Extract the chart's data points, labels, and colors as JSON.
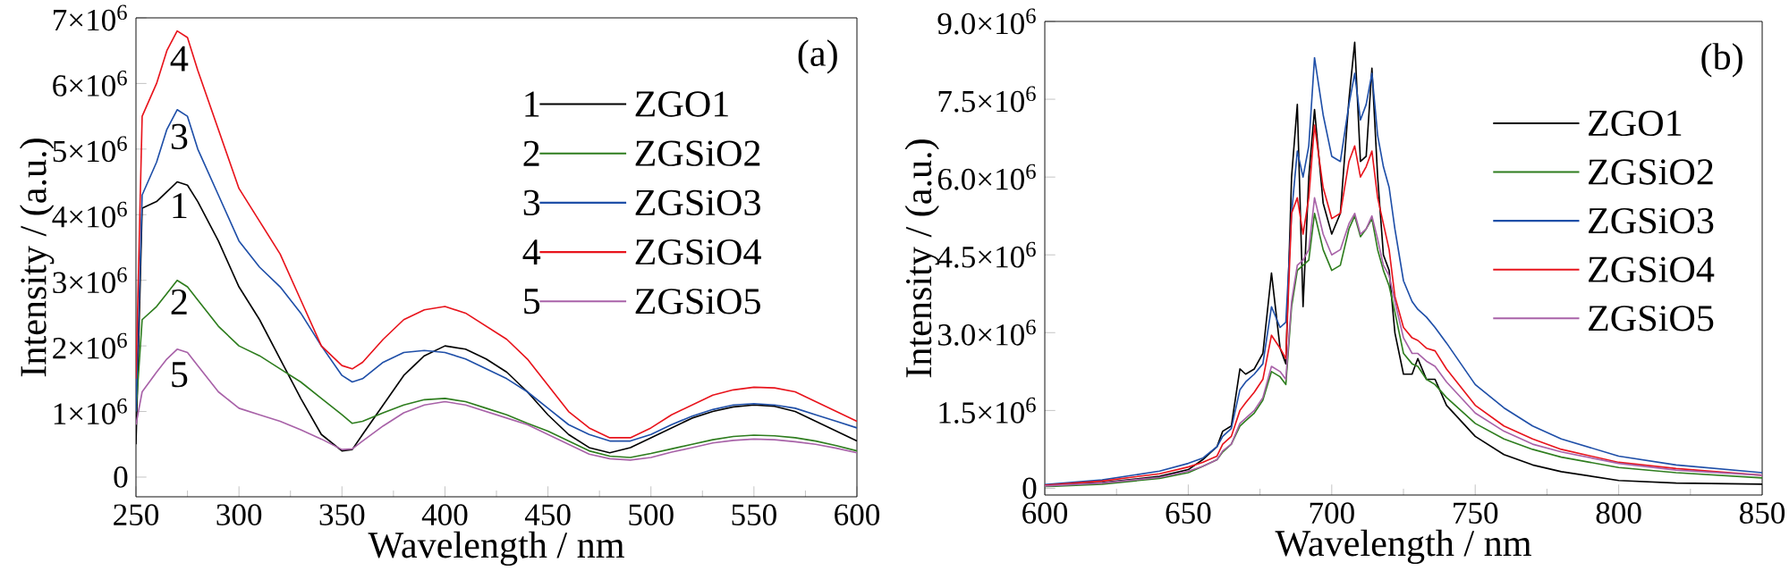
{
  "chart_data": [
    {
      "type": "line",
      "xlabel": "Wavelength / nm",
      "ylabel": "Intensity / (a.u.)",
      "legend": "top right",
      "xlim": [
        250,
        600
      ],
      "xticks": [
        250,
        300,
        350,
        400,
        450,
        500,
        550,
        600
      ],
      "ylim": [
        -300000,
        7000000
      ],
      "yticks": [
        0,
        {
          "value": 1000000.0,
          "label": "1×10$^{6}$"
        },
        {
          "value": 2000000.0,
          "label": "2×10$^{6}$"
        },
        {
          "value": 3000000.0,
          "label": "3×10$^{6}$"
        },
        {
          "value": 4000000.0,
          "label": "4×10$^{6}$"
        },
        {
          "value": 5000000.0,
          "label": "5×10$^{6}$"
        },
        {
          "value": 6000000.0,
          "label": "6×10$^{6}$"
        },
        {
          "value": 7000000.0,
          "label": "7×10$^{6}$"
        }
      ],
      "annotations": [
        "(a)",
        "1",
        "2",
        "3",
        "4",
        "5",
        "4",
        "3",
        "1",
        "2",
        "5"
      ],
      "x": [
        250,
        253,
        260,
        265,
        270,
        275,
        280,
        290,
        300,
        310,
        320,
        330,
        340,
        350,
        355,
        360,
        370,
        380,
        390,
        400,
        410,
        420,
        430,
        440,
        450,
        460,
        470,
        480,
        490,
        500,
        510,
        520,
        530,
        540,
        550,
        560,
        570,
        580,
        590,
        600
      ],
      "series": [
        {
          "name": "ZGO1",
          "color": "#000000",
          "values": [
            500000.0,
            4100000.0,
            4200000.0,
            4350000.0,
            4500000.0,
            4450000.0,
            4200000.0,
            3600000.0,
            2900000.0,
            2400000.0,
            1800000.0,
            1200000.0,
            650000.0,
            400000.0,
            420000.0,
            650000.0,
            1100000.0,
            1550000.0,
            1850000.0,
            2000000.0,
            1950000.0,
            1800000.0,
            1600000.0,
            1300000.0,
            950000.0,
            650000.0,
            450000.0,
            370000.0,
            450000.0,
            600000.0,
            750000.0,
            900000.0,
            1000000.0,
            1070000.0,
            1100000.0,
            1080000.0,
            1000000.0,
            850000.0,
            700000.0,
            550000.0
          ]
        },
        {
          "name": "ZGSiO2",
          "color": "#2e7d1e",
          "values": [
            1000000.0,
            2400000.0,
            2600000.0,
            2800000.0,
            3000000.0,
            2900000.0,
            2700000.0,
            2300000.0,
            2000000.0,
            1850000.0,
            1650000.0,
            1450000.0,
            1200000.0,
            950000.0,
            820000.0,
            850000.0,
            980000.0,
            1100000.0,
            1180000.0,
            1200000.0,
            1150000.0,
            1050000.0,
            950000.0,
            820000.0,
            700000.0,
            550000.0,
            400000.0,
            320000.0,
            300000.0,
            360000.0,
            430000.0,
            500000.0,
            570000.0,
            620000.0,
            640000.0,
            630000.0,
            600000.0,
            550000.0,
            480000.0,
            400000.0
          ]
        },
        {
          "name": "ZGSiO3",
          "color": "#1f4fa8",
          "values": [
            1000000.0,
            4300000.0,
            4800000.0,
            5300000.0,
            5600000.0,
            5500000.0,
            5000000.0,
            4300000.0,
            3600000.0,
            3200000.0,
            2900000.0,
            2500000.0,
            2000000.0,
            1550000.0,
            1450000.0,
            1500000.0,
            1750000.0,
            1900000.0,
            1930000.0,
            1900000.0,
            1800000.0,
            1650000.0,
            1500000.0,
            1300000.0,
            1050000.0,
            800000.0,
            650000.0,
            550000.0,
            550000.0,
            650000.0,
            800000.0,
            930000.0,
            1030000.0,
            1100000.0,
            1120000.0,
            1100000.0,
            1050000.0,
            950000.0,
            850000.0,
            750000.0
          ]
        },
        {
          "name": "ZGSiO4",
          "color": "#e8141c",
          "values": [
            1500000.0,
            5500000.0,
            6000000.0,
            6500000.0,
            6800000.0,
            6700000.0,
            6200000.0,
            5300000.0,
            4400000.0,
            3900000.0,
            3400000.0,
            2700000.0,
            2000000.0,
            1700000.0,
            1650000.0,
            1750000.0,
            2100000.0,
            2400000.0,
            2550000.0,
            2600000.0,
            2500000.0,
            2300000.0,
            2100000.0,
            1800000.0,
            1400000.0,
            1000000.0,
            750000.0,
            600000.0,
            600000.0,
            750000.0,
            950000.0,
            1100000.0,
            1250000.0,
            1330000.0,
            1370000.0,
            1360000.0,
            1300000.0,
            1150000.0,
            1000000.0,
            850000.0
          ]
        },
        {
          "name": "ZGSiO5",
          "color": "#a862a8",
          "values": [
            800000.0,
            1300000.0,
            1600000.0,
            1800000.0,
            1950000.0,
            1900000.0,
            1700000.0,
            1300000.0,
            1050000.0,
            950000.0,
            850000.0,
            720000.0,
            580000.0,
            420000.0,
            430000.0,
            550000.0,
            780000.0,
            980000.0,
            1100000.0,
            1150000.0,
            1100000.0,
            1000000.0,
            900000.0,
            800000.0,
            650000.0,
            500000.0,
            350000.0,
            280000.0,
            260000.0,
            300000.0,
            380000.0,
            450000.0,
            520000.0,
            560000.0,
            580000.0,
            570000.0,
            540000.0,
            500000.0,
            440000.0,
            370000.0
          ]
        }
      ]
    },
    {
      "type": "line",
      "xlabel": "Wavelength / nm",
      "ylabel": "Intensity / (a.u.)",
      "legend": "top right",
      "xlim": [
        600,
        850
      ],
      "xticks": [
        600,
        650,
        700,
        750,
        800,
        850
      ],
      "ylim": [
        -130000,
        9000000
      ],
      "yticks": [
        0,
        {
          "value": 1500000.0,
          "label": "1.5×10$^{6}$"
        },
        {
          "value": 3000000.0,
          "label": "3.0×10$^{6}$"
        },
        {
          "value": 4500000.0,
          "label": "4.5×10$^{6}$"
        },
        {
          "value": 6000000.0,
          "label": "6.0×10$^{6}$"
        },
        {
          "value": 7500000.0,
          "label": "7.5×10$^{6}$"
        },
        {
          "value": 9000000.0,
          "label": "9.0×10$^{6}$"
        }
      ],
      "annotations": [
        "(b)"
      ],
      "x": [
        600,
        620,
        640,
        650,
        655,
        660,
        662,
        665,
        668,
        670,
        673,
        676,
        679,
        682,
        684,
        686,
        688,
        690,
        692,
        694,
        697,
        700,
        703,
        706,
        708,
        710,
        712,
        714,
        716,
        718,
        720,
        722,
        725,
        728,
        730,
        733,
        736,
        740,
        750,
        760,
        770,
        780,
        800,
        820,
        850
      ],
      "series": [
        {
          "name": "ZGO1",
          "color": "#000000",
          "values": [
            50000.0,
            110000.0,
            230000.0,
            360000.0,
            550000.0,
            800000.0,
            1100000.0,
            1200000.0,
            2300000.0,
            2200000.0,
            2300000.0,
            2600000.0,
            4150000.0,
            2700000.0,
            2400000.0,
            6000000.0,
            7400000.0,
            3500000.0,
            6000000.0,
            7300000.0,
            5500000.0,
            4900000.0,
            5300000.0,
            7500000.0,
            8600000.0,
            6300000.0,
            6400000.0,
            8100000.0,
            6000000.0,
            4500000.0,
            4200000.0,
            3000000.0,
            2200000.0,
            2200000.0,
            2500000.0,
            2100000.0,
            2100000.0,
            1600000.0,
            1000000.0,
            650000.0,
            450000.0,
            320000.0,
            150000.0,
            100000.0,
            80000.0
          ]
        },
        {
          "name": "ZGSiO2",
          "color": "#2e7d1e",
          "values": [
            30000.0,
            80000.0,
            190000.0,
            300000.0,
            420000.0,
            550000.0,
            700000.0,
            850000.0,
            1200000.0,
            1300000.0,
            1450000.0,
            1700000.0,
            2250000.0,
            2150000.0,
            2000000.0,
            3500000.0,
            4200000.0,
            4300000.0,
            4400000.0,
            5300000.0,
            4600000.0,
            4200000.0,
            4300000.0,
            5000000.0,
            5250000.0,
            4850000.0,
            5000000.0,
            5200000.0,
            4600000.0,
            4200000.0,
            3900000.0,
            3400000.0,
            2600000.0,
            2400000.0,
            2350000.0,
            2100000.0,
            2000000.0,
            1750000.0,
            1250000.0,
            950000.0,
            750000.0,
            600000.0,
            400000.0,
            300000.0,
            200000.0
          ]
        },
        {
          "name": "ZGSiO3",
          "color": "#1f4fa8",
          "values": [
            70000.0,
            160000.0,
            330000.0,
            480000.0,
            580000.0,
            800000.0,
            1000000.0,
            1150000.0,
            1900000.0,
            2050000.0,
            2200000.0,
            2400000.0,
            3500000.0,
            3100000.0,
            3200000.0,
            5300000.0,
            6500000.0,
            6000000.0,
            6600000.0,
            8300000.0,
            7200000.0,
            6400000.0,
            6300000.0,
            7400000.0,
            8000000.0,
            7100000.0,
            7400000.0,
            8000000.0,
            6800000.0,
            6200000.0,
            5800000.0,
            5000000.0,
            4000000.0,
            3600000.0,
            3450000.0,
            3300000.0,
            3100000.0,
            2800000.0,
            2000000.0,
            1550000.0,
            1200000.0,
            950000.0,
            620000.0,
            450000.0,
            300000.0
          ]
        },
        {
          "name": "ZGSiO4",
          "color": "#e8141c",
          "values": [
            60000.0,
            140000.0,
            280000.0,
            410000.0,
            500000.0,
            620000.0,
            850000.0,
            1000000.0,
            1500000.0,
            1650000.0,
            1850000.0,
            2100000.0,
            2950000.0,
            2700000.0,
            2500000.0,
            5300000.0,
            5600000.0,
            4900000.0,
            5600000.0,
            7000000.0,
            5800000.0,
            5200000.0,
            5300000.0,
            6300000.0,
            6600000.0,
            6000000.0,
            6200000.0,
            6500000.0,
            5600000.0,
            5100000.0,
            4600000.0,
            3700000.0,
            3100000.0,
            2900000.0,
            2850000.0,
            2700000.0,
            2650000.0,
            2300000.0,
            1600000.0,
            1200000.0,
            950000.0,
            750000.0,
            500000.0,
            380000.0,
            250000.0
          ]
        },
        {
          "name": "ZGSiO5",
          "color": "#a862a8",
          "values": [
            45000.0,
            100000.0,
            210000.0,
            330000.0,
            420000.0,
            550000.0,
            720000.0,
            850000.0,
            1250000.0,
            1350000.0,
            1500000.0,
            1750000.0,
            2350000.0,
            2250000.0,
            2100000.0,
            3600000.0,
            4300000.0,
            4400000.0,
            4600000.0,
            5600000.0,
            4900000.0,
            4500000.0,
            4600000.0,
            5100000.0,
            5300000.0,
            4900000.0,
            5000000.0,
            5250000.0,
            4800000.0,
            4300000.0,
            4100000.0,
            3600000.0,
            2900000.0,
            2600000.0,
            2600000.0,
            2450000.0,
            2350000.0,
            2050000.0,
            1450000.0,
            1100000.0,
            850000.0,
            700000.0,
            480000.0,
            350000.0,
            250000.0
          ]
        }
      ]
    }
  ]
}
